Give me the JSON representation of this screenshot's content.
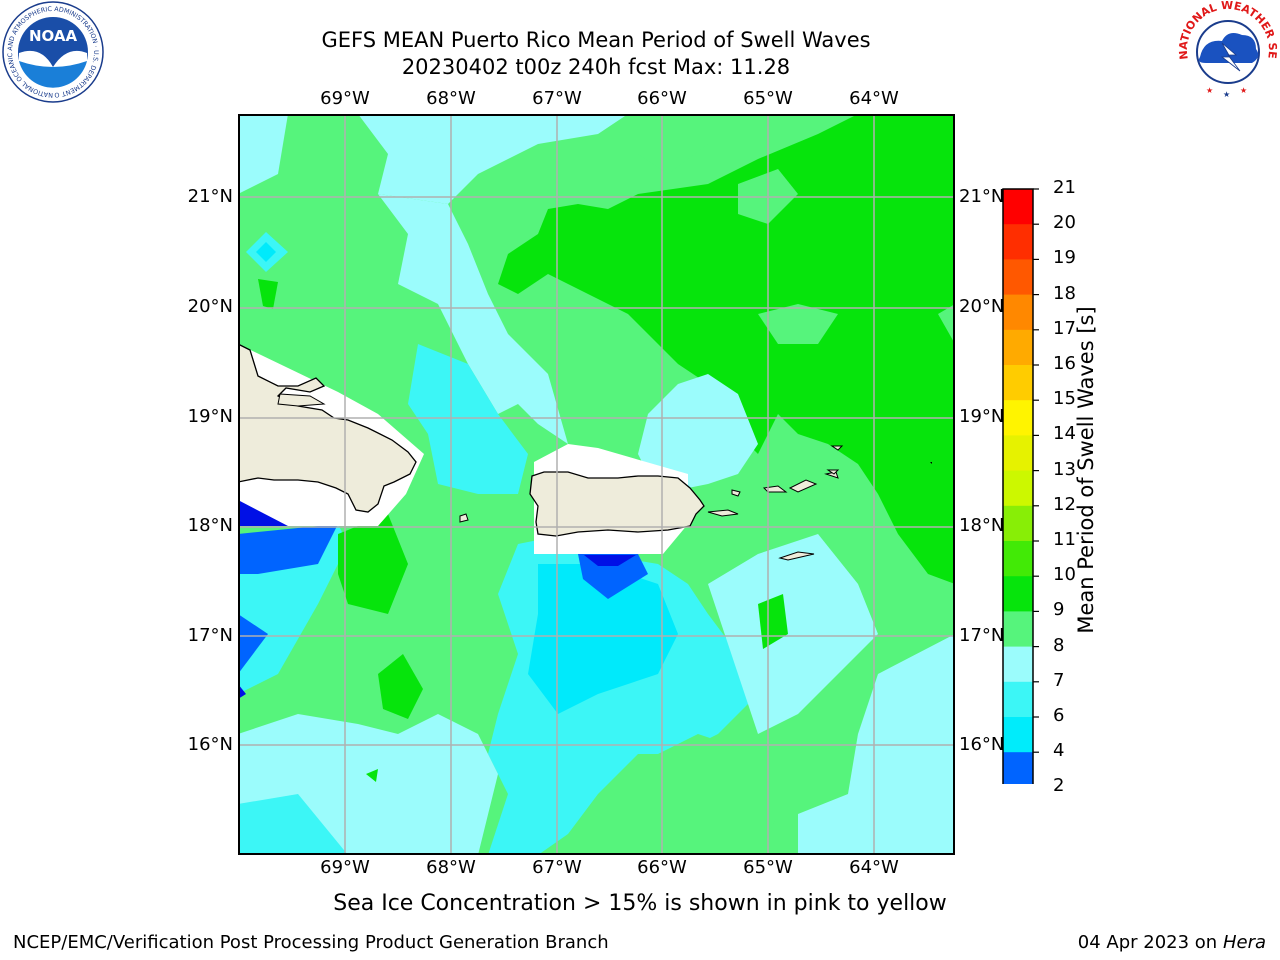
{
  "header": {
    "title_line1": "GEFS MEAN Puerto Rico Mean Period of Swell Waves",
    "title_line2": "20230402 t00z 240h fcst   Max: 11.28"
  },
  "map": {
    "lon_ticks": [
      "69°W",
      "68°W",
      "67°W",
      "66°W",
      "65°W",
      "64°W"
    ],
    "lat_ticks": [
      "21°N",
      "20°N",
      "19°N",
      "18°N",
      "17°N",
      "16°N"
    ],
    "land_color": "#eeecdb",
    "sea_colors": {
      "lt_cyan": "#9bfcfc",
      "lt_green": "#56f47c",
      "green": "#06e40c",
      "cyan": "#3cf6f6",
      "aqua": "#00eafb",
      "blue": "#0064ff",
      "dk_blue": "#0010e6"
    }
  },
  "chart_data": {
    "type": "heatmap",
    "title": "GEFS MEAN Puerto Rico Mean Period of Swell Waves",
    "subtitle": "20230402 t00z 240h fcst   Max: 11.28",
    "max_value": 11.28,
    "x_axis_ticks": [
      "69°W",
      "68°W",
      "67°W",
      "66°W",
      "65°W",
      "64°W"
    ],
    "y_axis_ticks": [
      "21°N",
      "20°N",
      "19°N",
      "18°N",
      "17°N",
      "16°N"
    ],
    "colorbar": {
      "label": "Mean Period of Swell Waves [s]",
      "levels": [
        2,
        4,
        6,
        7,
        8,
        9,
        10,
        11,
        12,
        13,
        14,
        15,
        16,
        17,
        18,
        19,
        20,
        21
      ],
      "tick_labels": [
        "21",
        "20",
        "19",
        "18",
        "17",
        "16",
        "15",
        "14",
        "13",
        "12",
        "11",
        "10",
        "9",
        "8",
        "7",
        "6",
        "4",
        "2"
      ],
      "colors": [
        "#0000dc",
        "#0064ff",
        "#00ecfb",
        "#3cf6f6",
        "#9bfcfc",
        "#56f47c",
        "#06e40c",
        "#42ea06",
        "#88ee06",
        "#ccf800",
        "#e6f200",
        "#fff400",
        "#ffcc00",
        "#ffaa00",
        "#ff8800",
        "#ff5800",
        "#ff2e00",
        "#ff0000"
      ]
    }
  },
  "logos": {
    "noaa_text": "NOAA",
    "noaa_ring": "NATIONAL OCEANIC AND ATMOSPHERIC ADMINISTRATION · U.S. DEPARTMENT OF COMMERCE ·",
    "nws_ring": "NATIONAL WEATHER SERVICE"
  },
  "footer": {
    "note": "Sea Ice Concentration > 15% is shown in pink to yellow",
    "credit": "NCEP/EMC/Verification Post Processing Product Generation Branch",
    "date": "04 Apr 2023 on",
    "host": "Hera"
  }
}
